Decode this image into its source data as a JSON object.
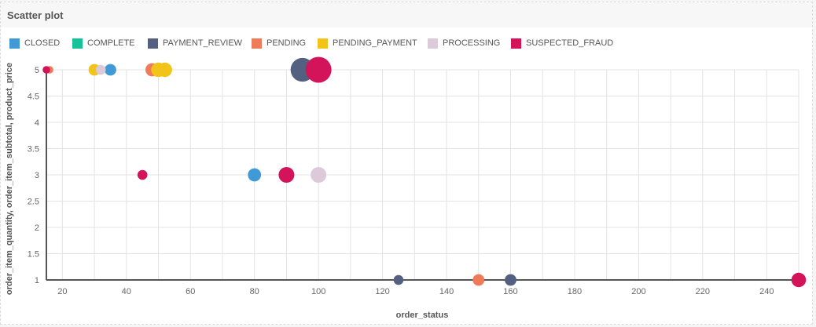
{
  "panel": {
    "title": "Scatter plot"
  },
  "chart_data": {
    "type": "scatter",
    "title": "",
    "xlabel": "order_status",
    "ylabel": "order_item_quantity, order_item_subtotal, product_price",
    "xlim": [
      15,
      250
    ],
    "ylim": [
      1,
      5
    ],
    "x_ticks": [
      20,
      40,
      60,
      80,
      100,
      120,
      140,
      160,
      180,
      200,
      220,
      240
    ],
    "y_ticks": [
      1,
      1.5,
      2,
      2.5,
      3,
      3.5,
      4,
      4.5,
      5
    ],
    "grid": true,
    "legend_position": "top-left",
    "series": [
      {
        "name": "CLOSED",
        "color": "#409ad5",
        "points": [
          {
            "x": 35,
            "y": 5,
            "size": 3
          },
          {
            "x": 80,
            "y": 3,
            "size": 4
          }
        ]
      },
      {
        "name": "COMPLETE",
        "color": "#15c39a",
        "points": []
      },
      {
        "name": "PAYMENT_REVIEW",
        "color": "#54607f",
        "points": [
          {
            "x": 95,
            "y": 5,
            "size": 15
          },
          {
            "x": 125,
            "y": 1,
            "size": 2
          },
          {
            "x": 160,
            "y": 1,
            "size": 3
          }
        ]
      },
      {
        "name": "PENDING",
        "color": "#f07b5a",
        "points": [
          {
            "x": 16,
            "y": 5,
            "size": 1
          },
          {
            "x": 48,
            "y": 5,
            "size": 4
          },
          {
            "x": 150,
            "y": 1,
            "size": 3
          }
        ]
      },
      {
        "name": "PENDING_PAYMENT",
        "color": "#f2c318",
        "points": [
          {
            "x": 30,
            "y": 5,
            "size": 3
          },
          {
            "x": 50,
            "y": 5,
            "size": 5
          },
          {
            "x": 52,
            "y": 5,
            "size": 5
          }
        ]
      },
      {
        "name": "PROCESSING",
        "color": "#dccadb",
        "points": [
          {
            "x": 32,
            "y": 5,
            "size": 2
          },
          {
            "x": 100,
            "y": 3,
            "size": 6
          }
        ]
      },
      {
        "name": "SUSPECTED_FRAUD",
        "color": "#d3135a",
        "points": [
          {
            "x": 15,
            "y": 5,
            "size": 1
          },
          {
            "x": 45,
            "y": 3,
            "size": 2
          },
          {
            "x": 90,
            "y": 3,
            "size": 6
          },
          {
            "x": 100,
            "y": 5,
            "size": 18
          },
          {
            "x": 250,
            "y": 1,
            "size": 5
          }
        ]
      }
    ]
  }
}
